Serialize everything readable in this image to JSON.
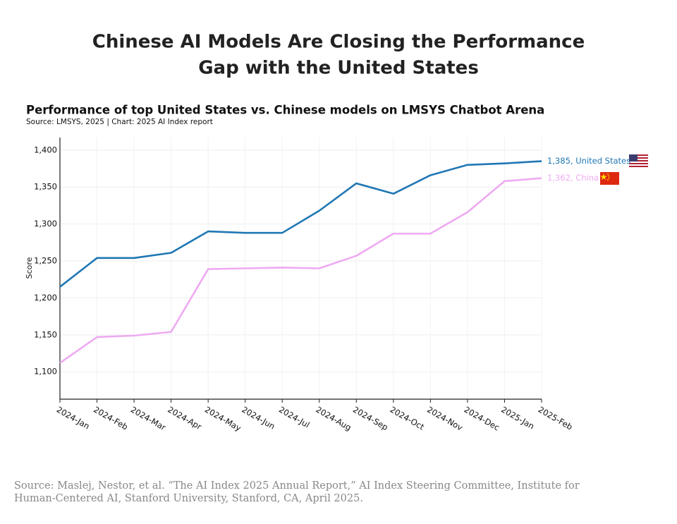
{
  "header": {
    "title_lines": [
      "Chinese AI Models Are Closing the Performance",
      "Gap with the United States"
    ]
  },
  "chart_data": {
    "type": "line",
    "title": "Performance of top United States vs. Chinese models on LMSYS Chatbot Arena",
    "subtitle": "Source: LMSYS, 2025 | Chart: 2025 AI Index report",
    "ylabel": "Score",
    "categories": [
      "2024-Jan",
      "2024-Feb",
      "2024-Mar",
      "2024-Apr",
      "2024-May",
      "2024-Jun",
      "2024-Jul",
      "2024-Aug",
      "2024-Sep",
      "2024-Oct",
      "2024-Nov",
      "2024-Dec",
      "2025-Jan",
      "2025-Feb"
    ],
    "series": [
      {
        "label": "1,385, United States",
        "color": "#1f77b4",
        "values": [
          1215,
          1254,
          1254,
          1261,
          1290,
          1288,
          1288,
          1318,
          1355,
          1341,
          1366,
          1380,
          1382,
          1385
        ]
      },
      {
        "label": "1,362, China",
        "color": "#eeaaf2",
        "values": [
          1112,
          1147,
          1149,
          1154,
          1239,
          1240,
          1241,
          1240,
          1257,
          1287,
          1287,
          1316,
          1358,
          1362
        ]
      }
    ],
    "ylim": [
      1063,
      1417
    ],
    "yticks": [
      {
        "value": 1100,
        "label": "1,100"
      },
      {
        "value": 1150,
        "label": "1,150"
      },
      {
        "value": 1200,
        "label": "1,200"
      },
      {
        "value": 1250,
        "label": "1,250"
      },
      {
        "value": 1300,
        "label": "1,300"
      },
      {
        "value": 1350,
        "label": "1,350"
      },
      {
        "value": 1400,
        "label": "1,400"
      }
    ],
    "grid": true
  },
  "footer": {
    "source_lines": [
      "Source: Maslej, Nestor, et al. “The AI Index 2025 Annual Report,” AI Index Steering Committee, Institute for",
      "Human-Centered AI, Stanford University, Stanford, CA, April 2025."
    ]
  }
}
